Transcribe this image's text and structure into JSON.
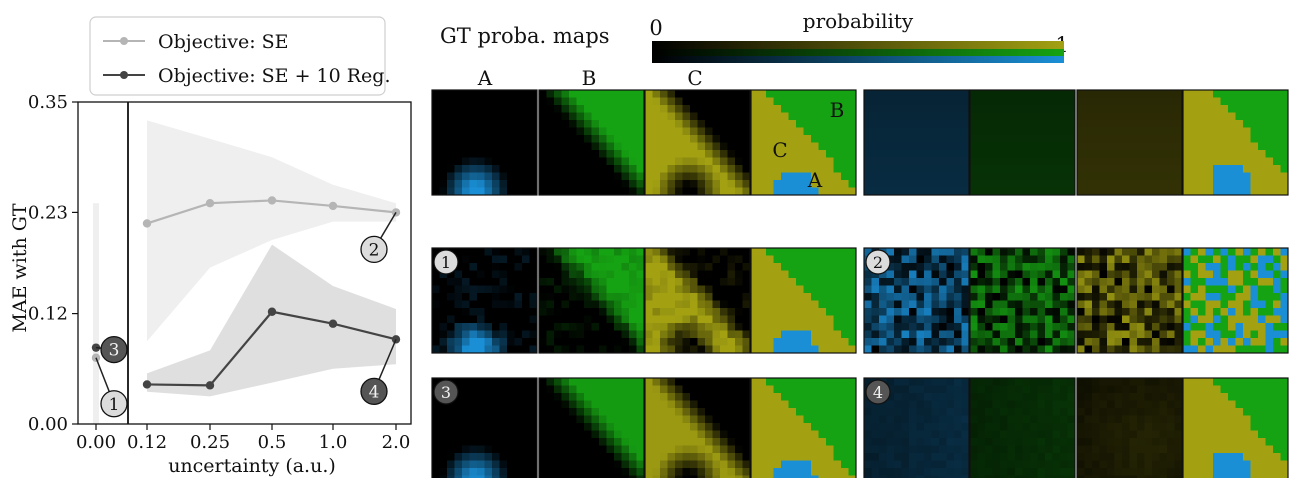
{
  "chart_data": [
    {
      "type": "line",
      "xlabel": "uncertainty (a.u.)",
      "ylabel": "MAE with GT",
      "x_tick_labels": [
        "0.00",
        "0.12",
        "0.25",
        "0.5",
        "1.0",
        "2.0"
      ],
      "y_ticks": [
        0.0,
        0.12,
        0.23,
        0.35
      ],
      "y_tick_labels": [
        "0.00",
        "0.12",
        "0.23",
        "0.35"
      ],
      "ylim": [
        0,
        0.35
      ],
      "axis_break_after": "0.00",
      "legend_position": "top",
      "series": [
        {
          "name": "Objective: SE",
          "color": "#b5b5b5",
          "x": [
            "0.00",
            "0.12",
            "0.25",
            "0.5",
            "1.0",
            "2.0"
          ],
          "values": [
            0.072,
            0.218,
            0.24,
            0.243,
            0.237,
            0.23
          ],
          "band_low": [
            0.0,
            0.09,
            0.17,
            0.2,
            0.22,
            0.22
          ],
          "band_high": [
            0.24,
            0.33,
            0.31,
            0.29,
            0.26,
            0.24
          ]
        },
        {
          "name": "Objective: SE + 10 Reg.",
          "color": "#444444",
          "x": [
            "0.00",
            "0.12",
            "0.25",
            "0.5",
            "1.0",
            "2.0"
          ],
          "values": [
            0.083,
            0.043,
            0.042,
            0.122,
            0.109,
            0.092
          ],
          "band_low": [
            0.083,
            0.035,
            0.03,
            0.045,
            0.06,
            0.065
          ],
          "band_high": [
            0.083,
            0.055,
            0.08,
            0.195,
            0.15,
            0.125
          ]
        }
      ],
      "annotations": [
        {
          "label": "1",
          "series": "Objective: SE",
          "x": "0.00"
        },
        {
          "label": "2",
          "series": "Objective: SE",
          "x": "2.0"
        },
        {
          "label": "3",
          "series": "Objective: SE + 10 Reg.",
          "x": "0.00"
        },
        {
          "label": "4",
          "series": "Objective: SE + 10 Reg.",
          "x": "2.0"
        }
      ]
    },
    {
      "type": "heatmap",
      "title": "GT proba. maps",
      "colorbar": {
        "label": "probability",
        "min_label": "0",
        "max_label": "1",
        "colors": {
          "A": "#1a8fd6",
          "B": "#16a313",
          "C": "#a3a112"
        }
      },
      "column_labels": [
        "A",
        "B",
        "C"
      ],
      "region_labels": [
        "A",
        "B",
        "C"
      ],
      "panel_markers": [
        "1",
        "2",
        "3",
        "4"
      ]
    }
  ]
}
